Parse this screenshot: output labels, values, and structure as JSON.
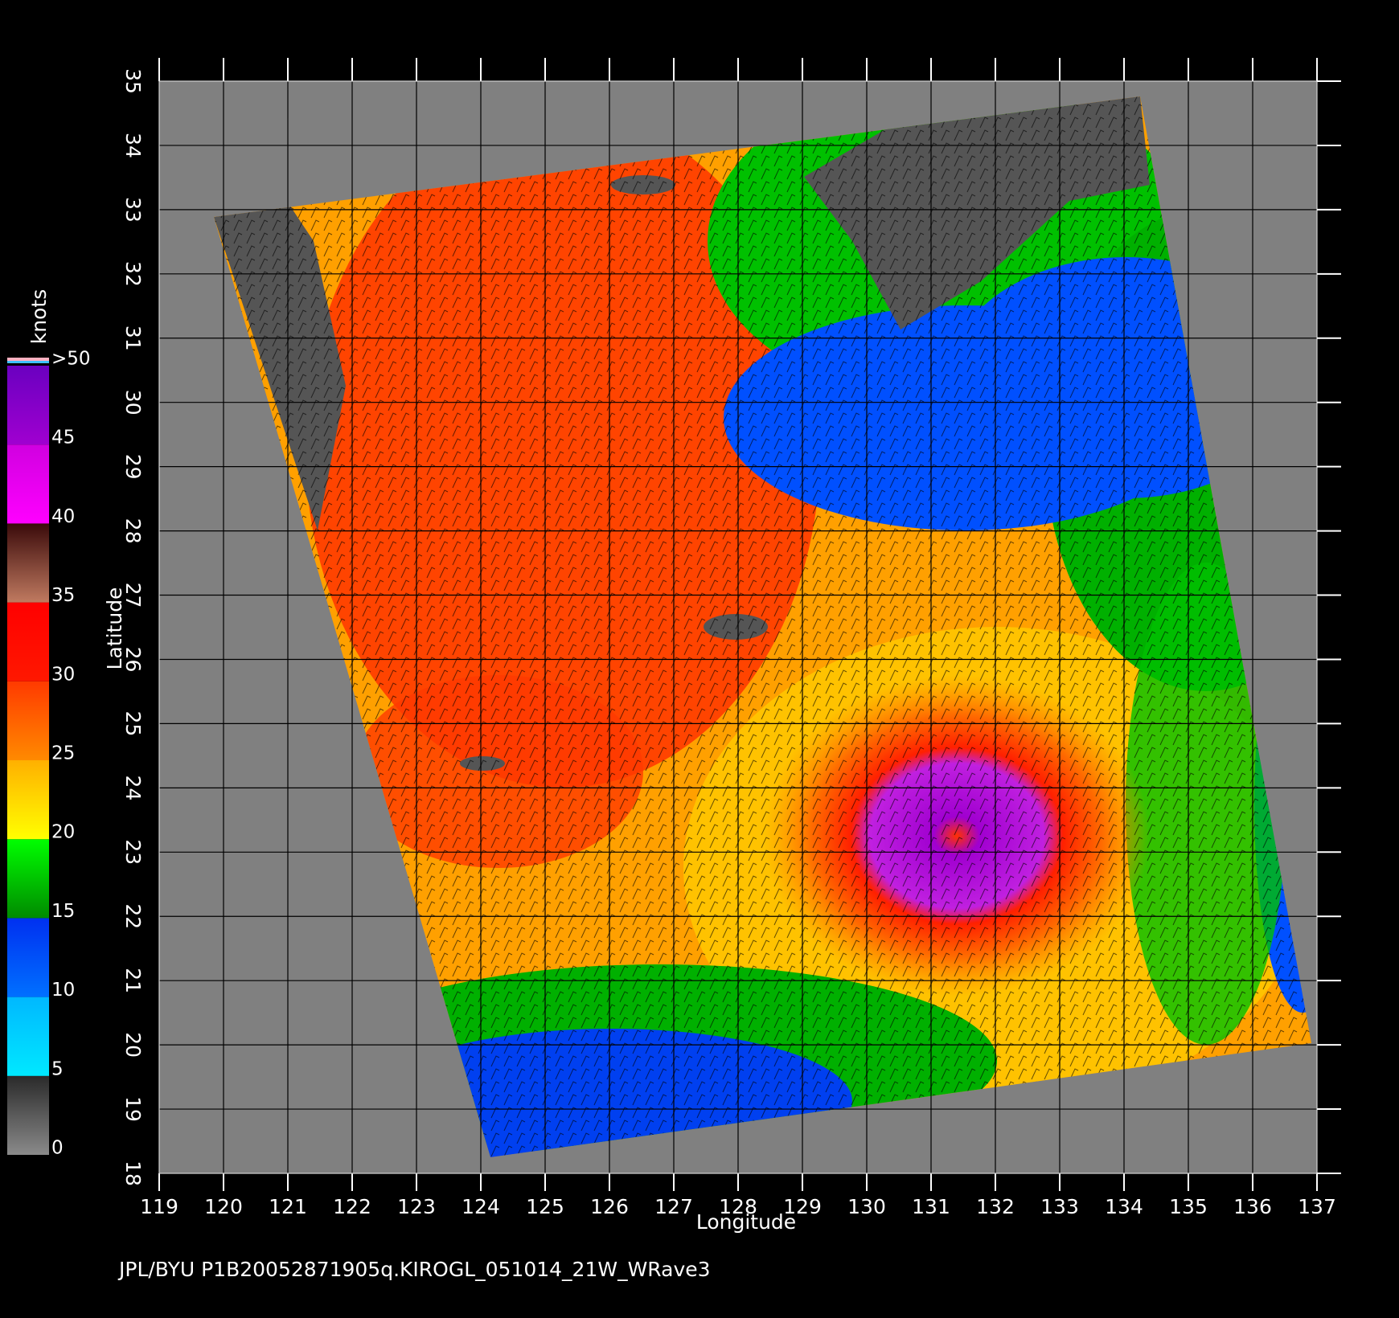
{
  "chart_data": {
    "type": "map",
    "xlabel": "Longitude",
    "ylabel": "Latitude",
    "footer": "JPL/BYU  P1B20052871905q.KIROGL_051014_21W_WRave3",
    "xlim": [
      119,
      137
    ],
    "ylim": [
      18,
      35
    ],
    "xticks": [
      119,
      120,
      121,
      122,
      123,
      124,
      125,
      126,
      127,
      128,
      129,
      130,
      131,
      132,
      133,
      134,
      135,
      136,
      137
    ],
    "yticks": [
      18,
      19,
      20,
      21,
      22,
      23,
      24,
      25,
      26,
      27,
      28,
      29,
      30,
      31,
      32,
      33,
      34,
      35
    ],
    "grid": true,
    "colorbar": {
      "label": "knots",
      "ticks": [
        0,
        5,
        10,
        15,
        20,
        25,
        30,
        35,
        40,
        45,
        {
          "value": 50,
          "label": ">50"
        }
      ],
      "colors": [
        [
          "#8a8a8a",
          "#2a2a2a"
        ],
        [
          "#00e8ff",
          "#00b8ff"
        ],
        [
          "#0070ff",
          "#0030f0"
        ],
        [
          "#008a00",
          "#00ff00"
        ],
        [
          "#ffff00",
          "#ffb000"
        ],
        [
          "#ff8a00",
          "#ff3a00"
        ],
        [
          "#ff1800",
          "#ff0000"
        ],
        [
          "#c07a60",
          "#3a0a0a"
        ],
        [
          "#ff00ff",
          "#d000e0"
        ],
        [
          "#a000d0",
          "#6a00c0"
        ]
      ]
    }
  }
}
